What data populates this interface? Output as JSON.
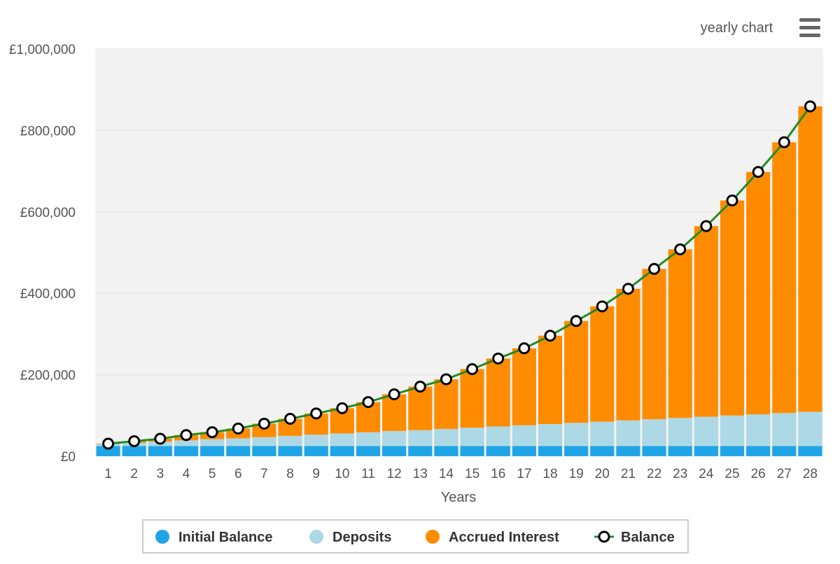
{
  "chart_title": "yearly chart",
  "menu_icon": "hamburger-menu-icon",
  "chart_data": {
    "type": "bar",
    "stacked": true,
    "categories": [
      "1",
      "2",
      "3",
      "4",
      "5",
      "6",
      "7",
      "8",
      "9",
      "10",
      "11",
      "12",
      "13",
      "14",
      "15",
      "16",
      "17",
      "18",
      "19",
      "20",
      "21",
      "22",
      "23",
      "24",
      "25",
      "26",
      "27",
      "28"
    ],
    "xlabel": "Years",
    "ylabel": "",
    "ylim": [
      0,
      1000000
    ],
    "yticks": [
      "£0",
      "£200,000",
      "£400,000",
      "£600,000",
      "£800,000",
      "£1,000,000"
    ],
    "ytick_values": [
      0,
      200000,
      400000,
      600000,
      800000,
      1000000
    ],
    "grid": true,
    "legend_position": "bottom",
    "series": [
      {
        "name": "Initial Balance",
        "color": "#1fa5e6",
        "kind": "bar",
        "values": [
          25000,
          25000,
          25000,
          25000,
          25000,
          25000,
          25000,
          25000,
          25000,
          25000,
          25000,
          25000,
          25000,
          25000,
          25000,
          25000,
          25000,
          25000,
          25000,
          25000,
          25000,
          25000,
          25000,
          25000,
          25000,
          25000,
          25000,
          25000
        ]
      },
      {
        "name": "Deposits",
        "color": "#add8e6",
        "kind": "bar",
        "values": [
          5000,
          8000,
          11000,
          14000,
          17000,
          19000,
          22000,
          25000,
          28000,
          31000,
          34000,
          37000,
          39000,
          42000,
          45000,
          48000,
          51000,
          54000,
          57000,
          60000,
          63000,
          66000,
          69000,
          72000,
          75000,
          78000,
          81000,
          84000
        ]
      },
      {
        "name": "Accrued Interest",
        "color": "#ff8c00",
        "kind": "bar",
        "values": [
          1000,
          4000,
          7000,
          13000,
          17000,
          24000,
          33000,
          42000,
          52000,
          62000,
          74000,
          90000,
          107000,
          122000,
          144000,
          167000,
          189000,
          217000,
          250000,
          283000,
          323000,
          369000,
          414000,
          468000,
          528000,
          595000,
          665000,
          750000
        ]
      },
      {
        "name": "Balance",
        "color": "#228b22",
        "kind": "line",
        "values": [
          31000,
          37000,
          43000,
          52000,
          59000,
          68000,
          80000,
          92000,
          105000,
          118000,
          133000,
          152000,
          171000,
          189000,
          214000,
          240000,
          265000,
          296000,
          332000,
          368000,
          411000,
          460000,
          508000,
          565000,
          628000,
          698000,
          771000,
          859000
        ]
      }
    ]
  }
}
